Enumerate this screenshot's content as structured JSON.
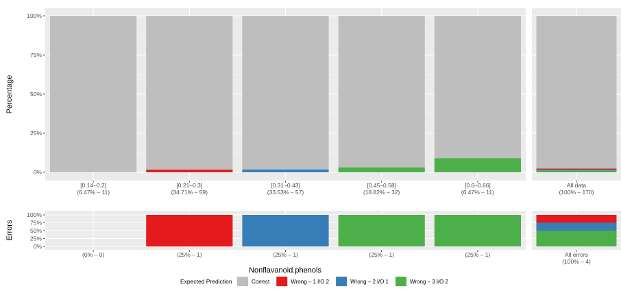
{
  "chart_data": {
    "type": "bar",
    "stacked": true,
    "x_title": "Nonflavanoid.phenols",
    "legend": {
      "title": "Expected Prediction",
      "position": "bottom",
      "items": [
        {
          "key": "correct",
          "label": "Correct",
          "color": "#bebebe"
        },
        {
          "key": "w1",
          "label": "Wrong – 1 l/O 2",
          "color": "#e41a1c"
        },
        {
          "key": "w2",
          "label": "Wrong – 2 l/O 1",
          "color": "#377eb8"
        },
        {
          "key": "w3",
          "label": "Wrong – 3 l/O 2",
          "color": "#4daf4a"
        }
      ]
    },
    "top_panel": {
      "ylabel": "Percentage",
      "yticks": [
        "0%",
        "25%",
        "50%",
        "75%",
        "100%"
      ],
      "ylim": [
        0,
        100
      ],
      "groups": [
        {
          "line1": "[0.14–0.2]",
          "line2": "(6.47% – 11)",
          "segments": {
            "w1": 0,
            "w2": 0,
            "w3": 0,
            "correct": 100
          }
        },
        {
          "line1": "[0.21–0.3]",
          "line2": "(34.71% – 59)",
          "segments": {
            "w1": 1.7,
            "w2": 0,
            "w3": 0,
            "correct": 98.3
          }
        },
        {
          "line1": "[0.31–0.43]",
          "line2": "(33.53% – 57)",
          "segments": {
            "w1": 0,
            "w2": 1.75,
            "w3": 0,
            "correct": 98.25
          }
        },
        {
          "line1": "[0.45–0.58]",
          "line2": "(18.82% – 32)",
          "segments": {
            "w1": 0,
            "w2": 0,
            "w3": 3.1,
            "correct": 96.9
          }
        },
        {
          "line1": "[0.6–0.66]",
          "line2": "(6.47% – 11)",
          "segments": {
            "w1": 0,
            "w2": 0,
            "w3": 9.1,
            "correct": 90.9
          }
        }
      ],
      "side": {
        "line1": "All data",
        "line2": "(100% – 170)",
        "segments": {
          "w3": 1.2,
          "w2": 0.6,
          "w1": 0.6,
          "correct": 97.6
        }
      }
    },
    "bottom_panel": {
      "ylabel": "Errors",
      "yticks": [
        "0%",
        "25%",
        "50%",
        "75%",
        "100%"
      ],
      "ylim": [
        0,
        100
      ],
      "groups": [
        {
          "line1": "(0% – 0)",
          "segments": {}
        },
        {
          "line1": "(25% – 1)",
          "segments": {
            "w1": 100
          }
        },
        {
          "line1": "(25% – 1)",
          "segments": {
            "w2": 100
          }
        },
        {
          "line1": "(25% – 1)",
          "segments": {
            "w3": 100
          }
        },
        {
          "line1": "(25% – 1)",
          "segments": {
            "w3": 100
          }
        }
      ],
      "side": {
        "line1": "All errors",
        "line2": "(100% – 4)",
        "segments": {
          "w3": 50,
          "w2": 25,
          "w1": 25
        }
      }
    }
  }
}
